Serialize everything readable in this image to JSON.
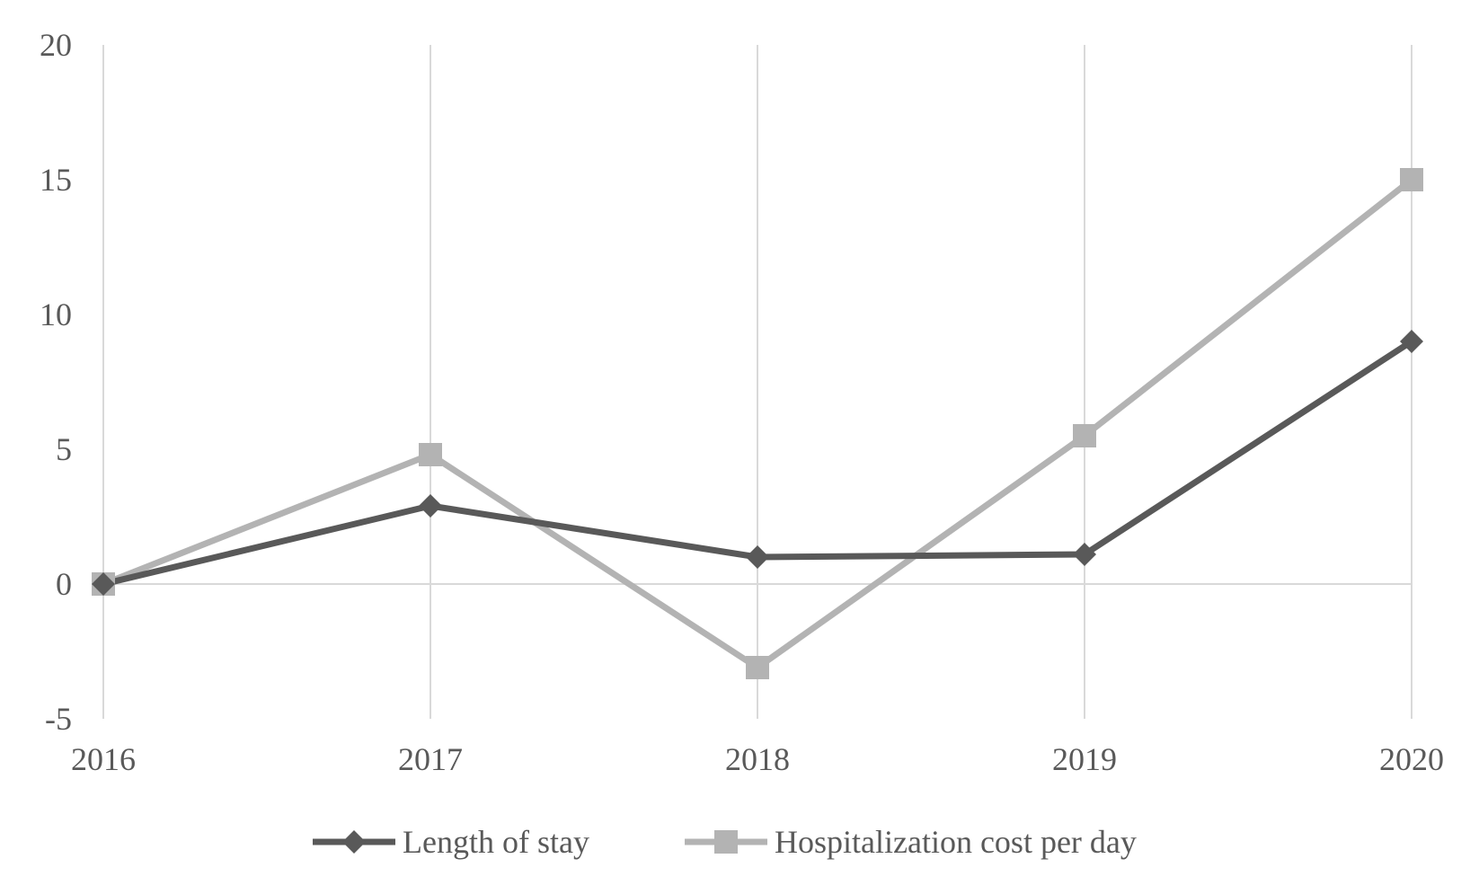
{
  "chart_data": {
    "type": "line",
    "title": "",
    "xlabel": "",
    "ylabel": "",
    "categories": [
      "2016",
      "2017",
      "2018",
      "2019",
      "2020"
    ],
    "y_ticks": [
      "20",
      "15",
      "10",
      "5",
      "0",
      "-5"
    ],
    "ylim": [
      -5,
      20
    ],
    "grid": "vertical",
    "legend_position": "bottom",
    "series": [
      {
        "name": "Length of stay",
        "values": [
          0,
          2.9,
          1.0,
          1.1,
          9.0
        ],
        "color": "#595959",
        "marker": "diamond"
      },
      {
        "name": "Hospitalization cost per day",
        "values": [
          0,
          4.8,
          -3.1,
          5.5,
          15.0
        ],
        "color": "#b3b3b3",
        "marker": "square"
      }
    ]
  }
}
